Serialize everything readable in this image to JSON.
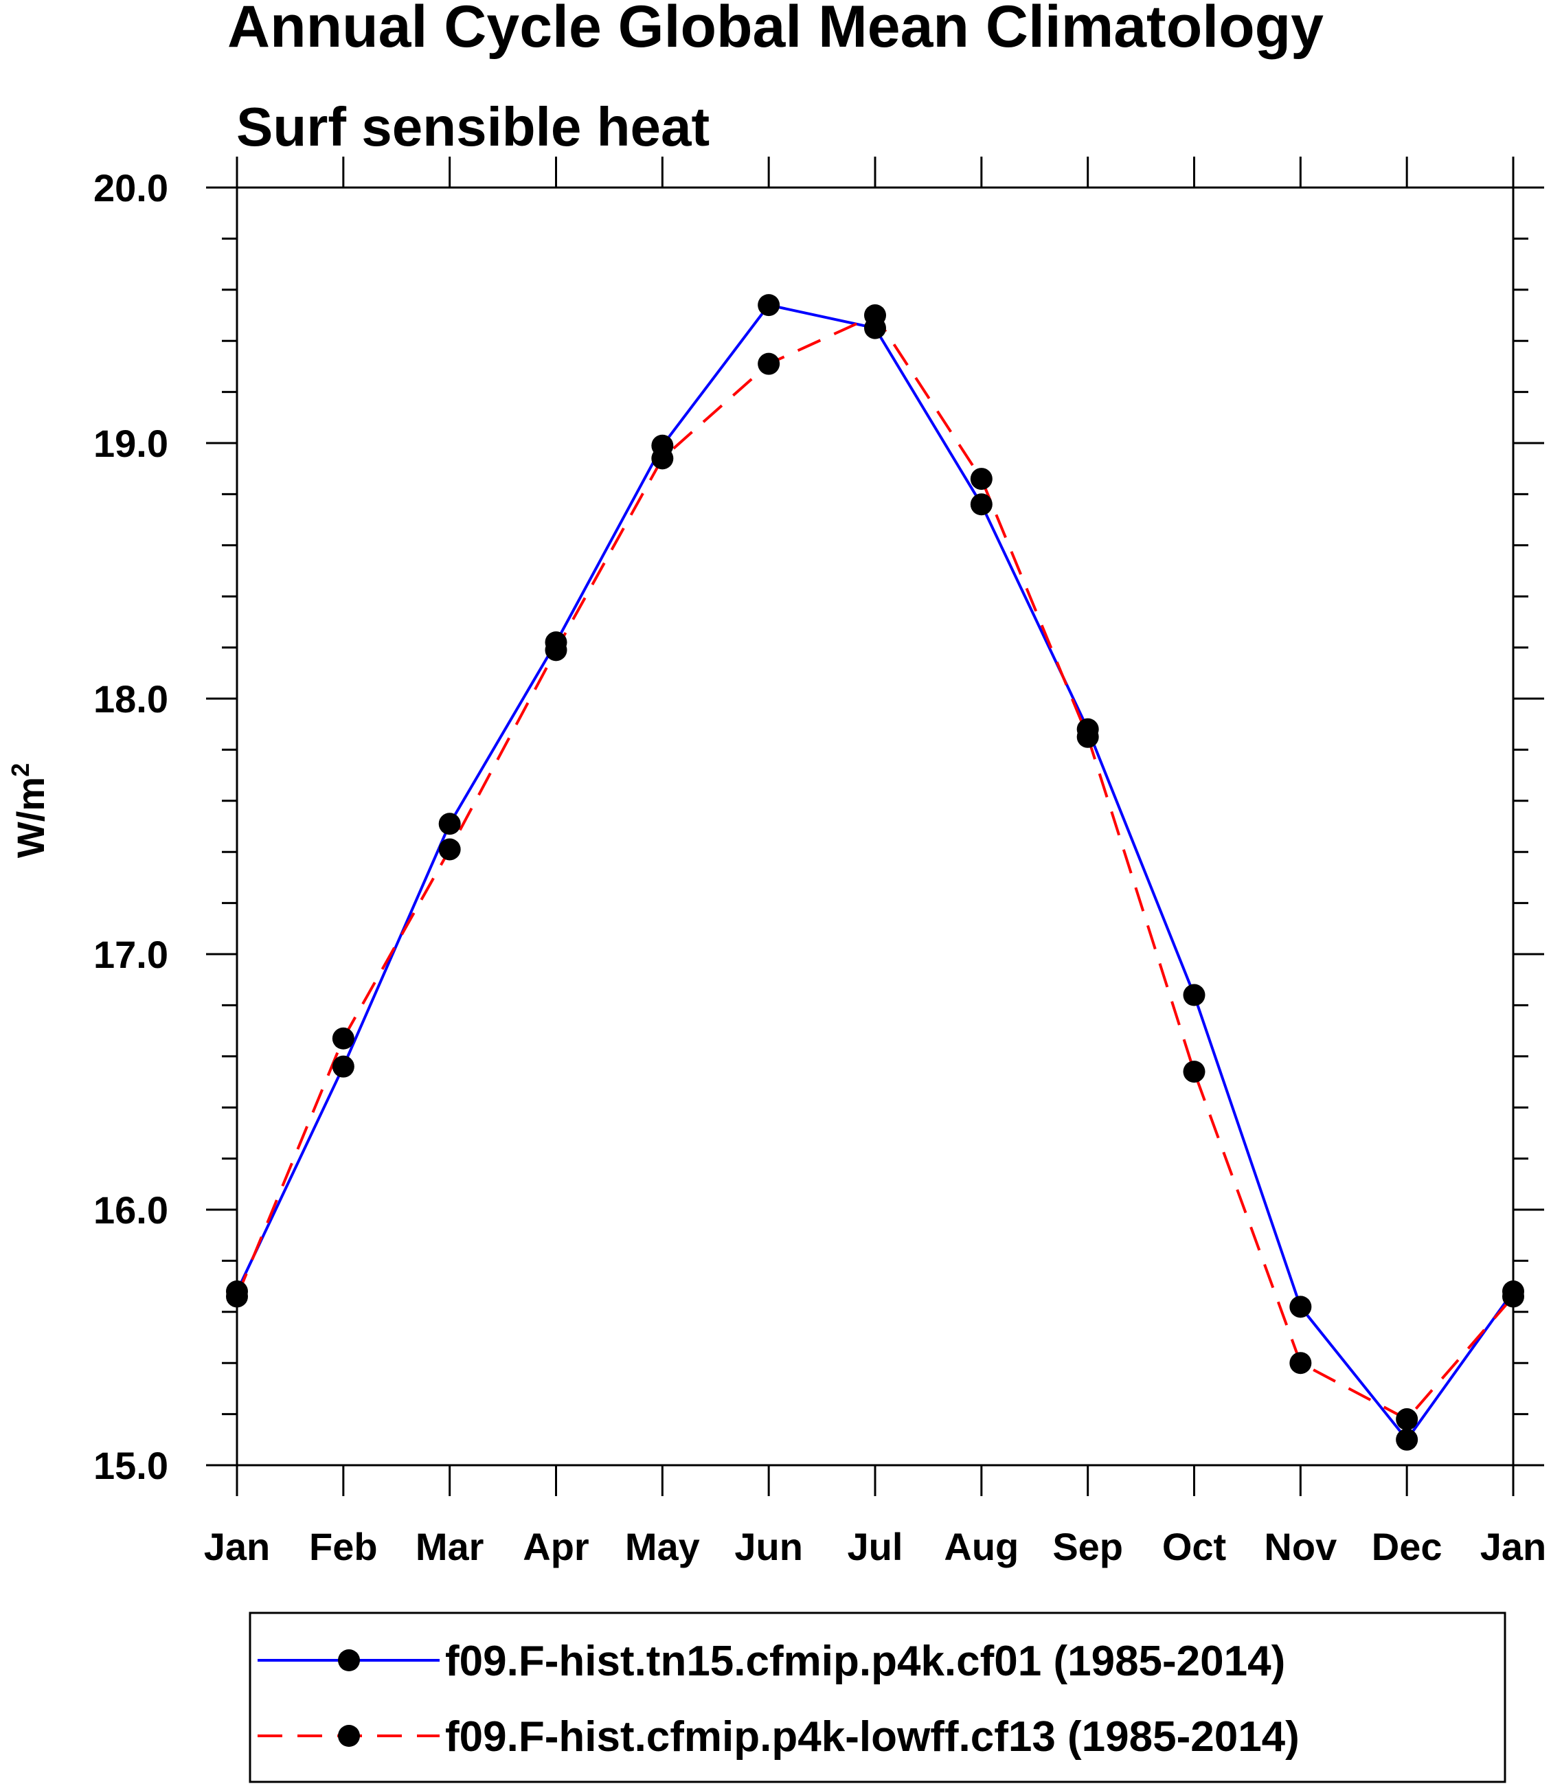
{
  "chart_data": {
    "type": "line",
    "title": "Annual Cycle Global Mean Climatology",
    "subtitle": "Surf sensible heat",
    "ylabel_text": "W/m",
    "ylabel_superscript": "2",
    "xlabel": "",
    "categories": [
      "Jan",
      "Feb",
      "Mar",
      "Apr",
      "May",
      "Jun",
      "Jul",
      "Aug",
      "Sep",
      "Oct",
      "Nov",
      "Dec",
      "Jan"
    ],
    "ylim": [
      15.0,
      20.0
    ],
    "yticks": [
      15.0,
      16.0,
      17.0,
      18.0,
      19.0,
      20.0
    ],
    "ytick_labels": [
      "15.0",
      "16.0",
      "17.0",
      "18.0",
      "19.0",
      "20.0"
    ],
    "y_minor_step": 0.2,
    "series": [
      {
        "name": "f09.F-hist.tn15.cfmip.p4k.cf01 (1985-2014)",
        "color": "#0000ff",
        "line_style": "solid",
        "marker": "filled-circle",
        "values": [
          15.68,
          16.56,
          17.51,
          18.22,
          18.99,
          19.54,
          19.45,
          18.76,
          17.88,
          16.84,
          15.62,
          15.1,
          15.68
        ]
      },
      {
        "name": "f09.F-hist.cfmip.p4k-lowff.cf13 (1985-2014)",
        "color": "#ff0000",
        "line_style": "dashed",
        "marker": "filled-circle",
        "values": [
          15.66,
          16.67,
          17.41,
          18.19,
          18.94,
          19.31,
          19.5,
          18.86,
          17.85,
          16.54,
          15.4,
          15.18,
          15.66
        ]
      }
    ],
    "legend_position": "bottom-center",
    "grid": false
  }
}
